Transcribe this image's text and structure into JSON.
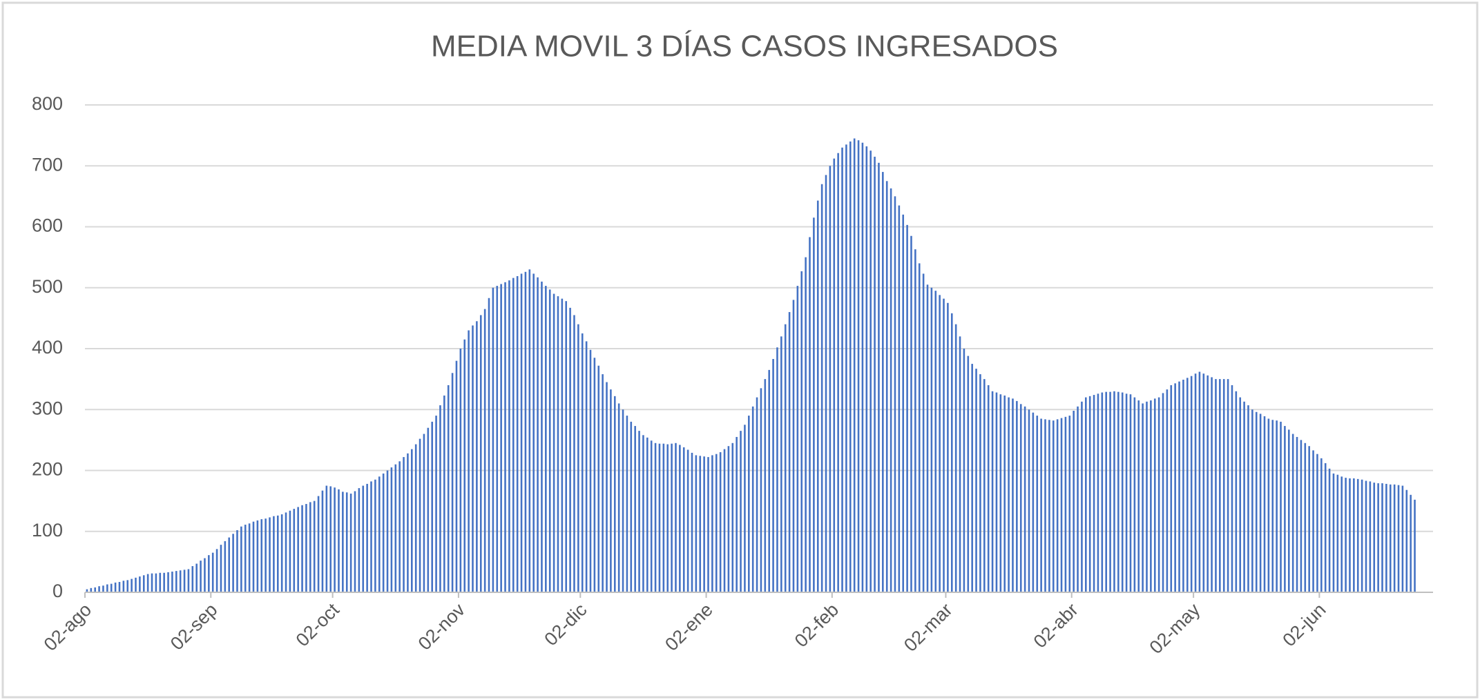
{
  "chart_data": {
    "type": "bar",
    "title": "MEDIA MOVIL 3 DÍAS CASOS INGRESADOS",
    "categories": [
      "02-ago",
      null,
      null,
      null,
      null,
      null,
      null,
      null,
      null,
      null,
      null,
      null,
      null,
      null,
      null,
      null,
      null,
      null,
      null,
      null,
      null,
      null,
      null,
      null,
      null,
      null,
      null,
      null,
      null,
      null,
      null,
      "02-sep",
      null,
      null,
      null,
      null,
      null,
      null,
      null,
      null,
      null,
      null,
      null,
      null,
      null,
      null,
      null,
      null,
      null,
      null,
      null,
      null,
      null,
      null,
      null,
      null,
      null,
      null,
      null,
      null,
      null,
      "02-oct",
      null,
      null,
      null,
      null,
      null,
      null,
      null,
      null,
      null,
      null,
      null,
      null,
      null,
      null,
      null,
      null,
      null,
      null,
      null,
      null,
      null,
      null,
      null,
      null,
      null,
      null,
      null,
      null,
      null,
      null,
      "02-nov",
      null,
      null,
      null,
      null,
      null,
      null,
      null,
      null,
      null,
      null,
      null,
      null,
      null,
      null,
      null,
      null,
      null,
      null,
      null,
      null,
      null,
      null,
      null,
      null,
      null,
      null,
      null,
      null,
      null,
      "02-dic",
      null,
      null,
      null,
      null,
      null,
      null,
      null,
      null,
      null,
      null,
      null,
      null,
      null,
      null,
      null,
      null,
      null,
      null,
      null,
      null,
      null,
      null,
      null,
      null,
      null,
      null,
      null,
      null,
      null,
      null,
      "02-ene",
      null,
      null,
      null,
      null,
      null,
      null,
      null,
      null,
      null,
      null,
      null,
      null,
      null,
      null,
      null,
      null,
      null,
      null,
      null,
      null,
      null,
      null,
      null,
      null,
      null,
      null,
      null,
      null,
      null,
      null,
      "02-feb",
      null,
      null,
      null,
      null,
      null,
      null,
      null,
      null,
      null,
      null,
      null,
      null,
      null,
      null,
      null,
      null,
      null,
      null,
      null,
      null,
      null,
      null,
      null,
      null,
      null,
      null,
      null,
      "02-mar",
      null,
      null,
      null,
      null,
      null,
      null,
      null,
      null,
      null,
      null,
      null,
      null,
      null,
      null,
      null,
      null,
      null,
      null,
      null,
      null,
      null,
      null,
      null,
      null,
      null,
      null,
      null,
      null,
      null,
      null,
      "02-abr",
      null,
      null,
      null,
      null,
      null,
      null,
      null,
      null,
      null,
      null,
      null,
      null,
      null,
      null,
      null,
      null,
      null,
      null,
      null,
      null,
      null,
      null,
      null,
      null,
      null,
      null,
      null,
      null,
      null,
      "02-may",
      null,
      null,
      null,
      null,
      null,
      null,
      null,
      null,
      null,
      null,
      null,
      null,
      null,
      null,
      null,
      null,
      null,
      null,
      null,
      null,
      null,
      null,
      null,
      null,
      null,
      null,
      null,
      null,
      null,
      null,
      "02-jun",
      null,
      null,
      null,
      null,
      null,
      null,
      null,
      null,
      null,
      null,
      null,
      null,
      null,
      null,
      null,
      null,
      null,
      null,
      null,
      null,
      null,
      null,
      null
    ],
    "values": [
      5,
      7,
      8,
      10,
      11,
      13,
      14,
      16,
      17,
      19,
      20,
      22,
      24,
      26,
      28,
      30,
      31,
      31,
      32,
      32,
      33,
      34,
      35,
      36,
      37,
      38,
      43,
      47,
      52,
      56,
      61,
      65,
      71,
      78,
      84,
      90,
      96,
      102,
      108,
      111,
      113,
      116,
      118,
      120,
      121,
      123,
      125,
      126,
      128,
      131,
      134,
      137,
      140,
      143,
      145,
      148,
      150,
      158,
      167,
      175,
      174,
      172,
      169,
      165,
      164,
      162,
      166,
      171,
      175,
      178,
      182,
      185,
      190,
      195,
      200,
      205,
      210,
      215,
      222,
      228,
      235,
      243,
      252,
      260,
      270,
      280,
      290,
      307,
      323,
      340,
      360,
      380,
      400,
      415,
      430,
      438,
      445,
      455,
      465,
      483,
      500,
      503,
      506,
      509,
      512,
      516,
      519,
      523,
      526,
      530,
      523,
      517,
      510,
      503,
      497,
      490,
      486,
      482,
      478,
      467,
      455,
      440,
      425,
      412,
      398,
      385,
      372,
      358,
      345,
      333,
      322,
      310,
      300,
      290,
      280,
      273,
      265,
      258,
      254,
      249,
      245,
      244,
      244,
      243,
      244,
      245,
      242,
      238,
      234,
      229,
      225,
      224,
      223,
      222,
      225,
      227,
      230,
      235,
      240,
      245,
      255,
      265,
      275,
      290,
      305,
      320,
      335,
      350,
      365,
      383,
      402,
      420,
      440,
      460,
      480,
      503,
      527,
      550,
      583,
      615,
      643,
      670,
      685,
      700,
      712,
      721,
      730,
      735,
      740,
      745,
      742,
      738,
      732,
      725,
      715,
      705,
      690,
      675,
      663,
      650,
      635,
      620,
      603,
      585,
      563,
      540,
      523,
      505,
      500,
      495,
      488,
      482,
      475,
      458,
      440,
      420,
      400,
      388,
      375,
      367,
      358,
      350,
      340,
      330,
      328,
      325,
      323,
      320,
      318,
      314,
      309,
      305,
      300,
      295,
      290,
      285,
      284,
      283,
      282,
      284,
      286,
      288,
      290,
      298,
      305,
      313,
      320,
      322,
      324,
      326,
      328,
      329,
      329,
      330,
      329,
      328,
      326,
      325,
      320,
      315,
      310,
      313,
      315,
      318,
      320,
      327,
      333,
      340,
      343,
      346,
      349,
      352,
      355,
      359,
      362,
      359,
      356,
      353,
      350,
      350,
      350,
      350,
      340,
      330,
      320,
      313,
      307,
      300,
      296,
      293,
      289,
      285,
      283,
      282,
      280,
      273,
      267,
      260,
      255,
      250,
      245,
      240,
      233,
      227,
      220,
      212,
      203,
      195,
      193,
      190,
      188,
      187,
      187,
      186,
      185,
      183,
      182,
      180,
      179,
      179,
      178,
      177,
      177,
      176,
      175,
      168,
      160,
      152
    ],
    "color": "#4472c4",
    "ylim": [
      0,
      800
    ],
    "yticks": [
      0,
      100,
      200,
      300,
      400,
      500,
      600,
      700,
      800
    ],
    "grid": true
  }
}
